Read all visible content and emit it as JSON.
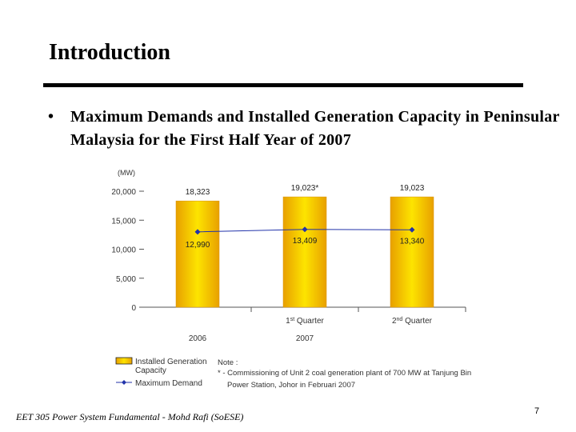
{
  "slide": {
    "title": "Introduction",
    "bullet": "Maximum Demands and Installed Generation Capacity in Peninsular Malaysia for the First Half Year of 2007",
    "footer": "EET 305 Power System Fundamental -    Mohd Rafi (SoESE)",
    "page_number": "7"
  },
  "chart_data": {
    "type": "bar",
    "ylabel": "(MW)",
    "ylim": [
      0,
      20000
    ],
    "yticks": [
      "0",
      "5,000",
      "10,000",
      "15,000",
      "20,000"
    ],
    "ytick_values": [
      0,
      5000,
      10000,
      15000,
      20000
    ],
    "categories": [
      "2006",
      "1st Quarter",
      "2nd Quarter"
    ],
    "category_labels": [
      {
        "main": "",
        "sup": "",
        "rest": ""
      },
      {
        "main": "1",
        "sup": "st",
        "rest": " Quarter"
      },
      {
        "main": "2",
        "sup": "nd",
        "rest": " Quarter"
      }
    ],
    "group_labels": [
      "2006",
      "2007"
    ],
    "series": [
      {
        "name": "Installed Generation Capacity",
        "kind": "bar",
        "values": [
          18323,
          19023,
          19023
        ],
        "labels": [
          "18,323",
          "19,023*",
          "19,023"
        ]
      },
      {
        "name": "Maximum Demand",
        "kind": "line",
        "values": [
          12990,
          13409,
          13340
        ],
        "labels": [
          "12,990",
          "13,409",
          "13,340"
        ]
      }
    ],
    "legend": {
      "placement": "bottom-left",
      "bar_label_line1": "Installed Generation",
      "bar_label_line2": "Capacity",
      "line_label": "Maximum Demand"
    },
    "note": {
      "title": "Note :",
      "line1": "* - Commissioning of Unit 2 coal generation plant of 700 MW at Tanjung Bin",
      "line2": "Power Station, Johor in Februari 2007"
    },
    "colors": {
      "bar_edge": "#e8a000",
      "bar_center": "#fde400",
      "line": "#2233aa",
      "axis": "#555555"
    }
  }
}
